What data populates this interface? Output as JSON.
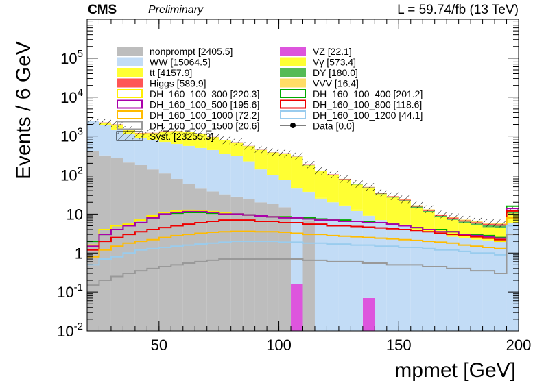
{
  "header": {
    "experiment": "CMS",
    "status": "Preliminary",
    "lumi": "L = 59.74/fb (13 TeV)"
  },
  "chart_data": {
    "type": "bar",
    "xlabel": "mpmet [GeV]",
    "ylabel": "Events / 6 GeV",
    "xlim": [
      20,
      200
    ],
    "ylim": [
      0.01,
      1000000
    ],
    "yscale": "log",
    "grid": false,
    "legend_position": "top-left, two columns",
    "x_ticks": [
      "50",
      "100",
      "150",
      "200"
    ],
    "y_ticks": [
      "10^-2",
      "10^-1",
      "1",
      "10",
      "10^2",
      "10^3",
      "10^4",
      "10^5"
    ],
    "bin_edges": [
      20,
      25,
      30,
      35,
      40,
      45,
      50,
      55,
      60,
      65,
      70,
      75,
      80,
      85,
      90,
      95,
      100,
      105,
      110,
      115,
      120,
      125,
      130,
      135,
      140,
      145,
      150,
      155,
      160,
      165,
      170,
      175,
      180,
      185,
      190,
      195,
      200
    ],
    "stack": [
      {
        "name": "nonprompt [2405.5]",
        "color": "#bdbdbd",
        "values": [
          420,
          320,
          280,
          210,
          180,
          140,
          110,
          80,
          60,
          45,
          38,
          32,
          28,
          24,
          20,
          18,
          15,
          0.01,
          7,
          0.01,
          0.01,
          0.01,
          0.01,
          0.01,
          0.01,
          0.01,
          0.01,
          0.01,
          0.01,
          0.01,
          0.01,
          0.01,
          0.01,
          0.01,
          0.01,
          0.01
        ]
      },
      {
        "name": "VZ [22.1]",
        "color": "#dd55dd",
        "values": [
          0,
          0,
          0,
          0,
          0,
          0,
          0,
          0,
          0,
          0,
          0,
          0,
          0,
          0,
          0,
          0,
          0,
          0.15,
          0,
          0,
          0,
          0,
          0,
          0.06,
          0,
          0,
          0,
          0,
          0,
          0,
          0,
          0,
          0,
          0,
          0,
          0
        ]
      },
      {
        "name": "WW [15064.5]",
        "color": "#c2dcf6",
        "values": [
          2000,
          1600,
          1200,
          900,
          700,
          650,
          600,
          550,
          500,
          450,
          400,
          320,
          280,
          200,
          120,
          80,
          60,
          45,
          30,
          25,
          20,
          16,
          12,
          9,
          7,
          6,
          5,
          4,
          3.5,
          3,
          2.6,
          2.4,
          2.2,
          2.1,
          2.0,
          6
        ]
      },
      {
        "name": "V&#947; [573.4]",
        "color": "#ffff33",
        "values": [
          5,
          4,
          3,
          2,
          2,
          2,
          2,
          2,
          2,
          2,
          2,
          1,
          1,
          1,
          1,
          1,
          1,
          1,
          1,
          1,
          1,
          1,
          1,
          0.5,
          0.5,
          0.5,
          0.5,
          0.5,
          0.5,
          0.5,
          0.5,
          0.5,
          0.5,
          0.5,
          0.5,
          0.5
        ]
      },
      {
        "name": "tt [4157.9]",
        "color": "#ffff33",
        "values": [
          30,
          300,
          500,
          300,
          300,
          400,
          600,
          700,
          720,
          650,
          500,
          420,
          380,
          330,
          300,
          280,
          280,
          250,
          140,
          100,
          80,
          60,
          44,
          38,
          25,
          20,
          16,
          10,
          7,
          5,
          4,
          3,
          2.5,
          2,
          2,
          4
        ]
      },
      {
        "name": "DY [180.0]",
        "color": "#55bb55",
        "values": [
          2,
          3,
          3,
          3,
          3,
          3,
          3,
          3,
          3,
          2,
          2,
          2,
          2,
          2,
          2,
          2,
          2,
          2,
          2,
          2,
          1,
          1,
          1,
          1,
          1,
          1,
          1,
          1,
          1,
          0.5,
          0.5,
          0.5,
          0.5,
          0.5,
          0.5,
          1
        ]
      },
      {
        "name": "Higgs [589.9]",
        "color": "#ff5555",
        "values": [
          20,
          25,
          25,
          25,
          25,
          20,
          18,
          15,
          14,
          12,
          10,
          8,
          7,
          6,
          5,
          4,
          3,
          3,
          3,
          2,
          2,
          2,
          1.5,
          1,
          1,
          1,
          1,
          1,
          1,
          0.5,
          0.5,
          0.5,
          0.5,
          0.5,
          0.5,
          0.5
        ]
      },
      {
        "name": "VVV [16.4]",
        "color": "#ffdd66",
        "values": [
          0.1,
          0.1,
          0.2,
          0.3,
          0.3,
          0.3,
          0.3,
          0.3,
          0.3,
          0.3,
          0.3,
          0.3,
          0.3,
          0.3,
          0.3,
          0.3,
          0.3,
          0.3,
          0.3,
          0.3,
          0.3,
          0.3,
          0.3,
          0.3,
          0.3,
          0.3,
          0.3,
          0.3,
          0.3,
          0.3,
          0.3,
          0.3,
          0.3,
          0.3,
          0.3,
          0.3
        ]
      }
    ],
    "signals": [
      {
        "name": "DH_160_100_300 [220.3]",
        "color": "#ffee00",
        "values": [
          1.6,
          4,
          5,
          5.5,
          7,
          9,
          11,
          12,
          12.5,
          12,
          11.5,
          10.5,
          10,
          9.5,
          9,
          8.5,
          8.5,
          8,
          7.5,
          7,
          7,
          6.5,
          6.5,
          6,
          6,
          5.5,
          5,
          4.5,
          4,
          4,
          3.5,
          3,
          2.8,
          2.5,
          2,
          12
        ]
      },
      {
        "name": "DH_160_100_400 [201.2]",
        "color": "#00aa00",
        "values": [
          2,
          3,
          4,
          5,
          6,
          8,
          10,
          10.5,
          11,
          11,
          10.5,
          10,
          10,
          9.5,
          9,
          8.5,
          8.5,
          8,
          8,
          7.5,
          7,
          7,
          6.5,
          6.5,
          6,
          5.5,
          5,
          4.5,
          4,
          4,
          3.5,
          3,
          3,
          2.8,
          2.5,
          16
        ]
      },
      {
        "name": "DH_160_100_500 [195.6]",
        "color": "#aa00aa",
        "values": [
          1.5,
          3,
          4,
          5,
          6,
          8,
          10,
          11,
          11.5,
          11.5,
          11,
          10,
          10,
          9.5,
          9,
          8.5,
          8,
          8,
          7.5,
          7,
          7,
          6.5,
          6.5,
          6,
          6,
          5.5,
          5,
          4.5,
          4,
          3.5,
          3.5,
          3,
          2.8,
          2.6,
          2.4,
          14
        ]
      },
      {
        "name": "DH_160_100_800 [118.6]",
        "color": "#ee0000",
        "values": [
          1.2,
          2,
          2.5,
          3,
          3.5,
          4,
          4.5,
          5,
          5.5,
          6,
          6.5,
          7,
          7,
          7,
          6.5,
          6.5,
          6,
          6,
          5.5,
          5.5,
          5,
          5,
          4.8,
          4.6,
          4.4,
          4.2,
          4,
          3.8,
          3.5,
          3.2,
          3,
          2.8,
          2.6,
          2.4,
          2.2,
          12
        ]
      },
      {
        "name": "DH_160_100_1000 [72.2]",
        "color": "#ffbb00",
        "values": [
          0.8,
          1.2,
          1.5,
          1.8,
          2,
          2.2,
          2.5,
          2.8,
          3,
          3.2,
          3.4,
          3.5,
          3.6,
          3.6,
          3.5,
          3.5,
          3.4,
          3.2,
          3,
          3,
          2.8,
          2.7,
          2.6,
          2.5,
          2.4,
          2.3,
          2.2,
          2.1,
          2,
          1.9,
          1.8,
          1.6,
          1.5,
          1.4,
          1.3,
          8
        ]
      },
      {
        "name": "DH_160_100_1200 [44.1]",
        "color": "#99ccee",
        "values": [
          0.5,
          0.7,
          0.8,
          1,
          1.2,
          1.3,
          1.4,
          1.5,
          1.6,
          1.7,
          1.8,
          1.9,
          2,
          2,
          2,
          2,
          1.9,
          1.9,
          1.8,
          1.8,
          1.7,
          1.7,
          1.6,
          1.6,
          1.5,
          1.5,
          1.4,
          1.4,
          1.3,
          1.2,
          1.2,
          1.1,
          1,
          1,
          0.9,
          5
        ]
      },
      {
        "name": "DH_160_100_1500 [20.6]",
        "color": "#999999",
        "values": [
          0.15,
          0.2,
          0.25,
          0.3,
          0.35,
          0.4,
          0.45,
          0.5,
          0.55,
          0.6,
          0.65,
          0.7,
          0.7,
          0.7,
          0.7,
          0.7,
          0.7,
          0.7,
          0.65,
          0.65,
          0.6,
          0.6,
          0.6,
          0.55,
          0.55,
          0.5,
          0.5,
          0.5,
          0.45,
          0.45,
          0.4,
          0.4,
          0.35,
          0.35,
          0.3,
          3
        ]
      }
    ],
    "legend_entries": [
      {
        "label": "nonprompt [2405.5]",
        "style": "fill",
        "color": "#bdbdbd"
      },
      {
        "label": "VZ [22.1]",
        "style": "fill",
        "color": "#dd55dd"
      },
      {
        "label": "WW [15064.5]",
        "style": "fill",
        "color": "#c2dcf6"
      },
      {
        "label": "Vγ [573.4]",
        "style": "fill",
        "color": "#ffff33"
      },
      {
        "label": "tt [4157.9]",
        "style": "fill",
        "color": "#ffff33"
      },
      {
        "label": "DY [180.0]",
        "style": "fill",
        "color": "#55bb55"
      },
      {
        "label": "Higgs [589.9]",
        "style": "fill",
        "color": "#ff5555"
      },
      {
        "label": "VVV [16.4]",
        "style": "fill",
        "color": "#ffdd66"
      },
      {
        "label": "DH_160_100_300 [220.3]",
        "style": "line",
        "color": "#ffee00"
      },
      {
        "label": "DH_160_100_400 [201.2]",
        "style": "line",
        "color": "#00aa00"
      },
      {
        "label": "DH_160_100_500 [195.6]",
        "style": "line",
        "color": "#aa00aa"
      },
      {
        "label": "DH_160_100_800 [118.6]",
        "style": "line",
        "color": "#ee0000"
      },
      {
        "label": "DH_160_100_1000 [72.2]",
        "style": "line",
        "color": "#ffbb00"
      },
      {
        "label": "DH_160_100_1200 [44.1]",
        "style": "line",
        "color": "#99ccee"
      },
      {
        "label": "DH_160_100_1500 [20.6]",
        "style": "line",
        "color": "#999999"
      },
      {
        "label": "Data [0.0]",
        "style": "marker",
        "color": "#000000"
      },
      {
        "label": "Syst. [23255.3]",
        "style": "hatch",
        "color": "#000000"
      }
    ],
    "uncertainty_label": "Syst. [23255.3]",
    "data_label": "Data [0.0]"
  }
}
